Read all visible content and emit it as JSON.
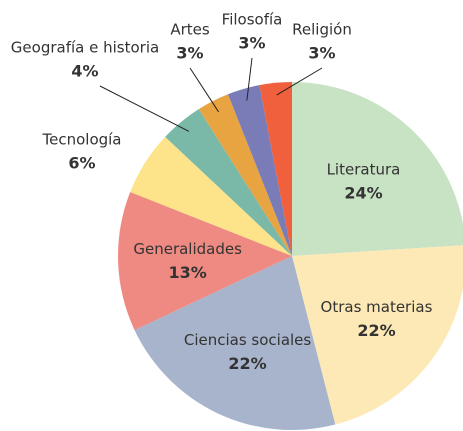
{
  "chart_data": {
    "type": "pie",
    "categories": [
      "Literatura",
      "Otras materias",
      "Ciencias sociales",
      "Generalidades",
      "Tecnología",
      "Geografía e historia",
      "Artes",
      "Filosofía",
      "Religión"
    ],
    "values": [
      24,
      22,
      22,
      13,
      6,
      4,
      3,
      3,
      3
    ],
    "value_labels": [
      "24%",
      "22%",
      "22%",
      "13%",
      "6%",
      "4%",
      "3%",
      "3%",
      "3%"
    ],
    "colors": [
      "#c8e2c4",
      "#fde9b5",
      "#a8b4cc",
      "#ee8a82",
      "#fde48a",
      "#7ab8a8",
      "#e8a440",
      "#7a7cb8",
      "#f0603c"
    ]
  }
}
